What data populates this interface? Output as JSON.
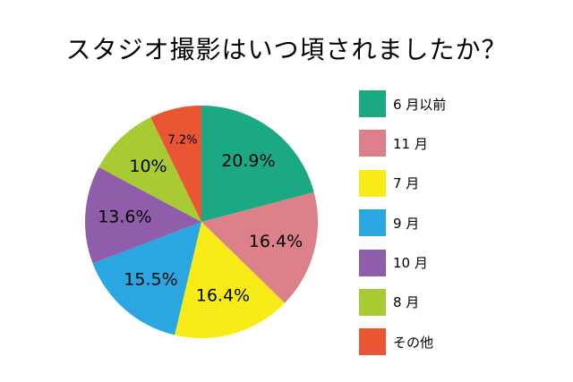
{
  "title": "スタジオ撮影はいつ頃されましたか？",
  "chart_data": {
    "type": "pie",
    "title": "スタジオ撮影はいつ頃されましたか？",
    "start": "12 o'clock, clockwise",
    "legend_position": "right",
    "slices": [
      {
        "label": "6 月以前",
        "value": 20.9,
        "value_label": "20.9%",
        "color": "#1aa982"
      },
      {
        "label": "11 月",
        "value": 16.4,
        "value_label": "16.4%",
        "color": "#dc8089"
      },
      {
        "label": "7 月",
        "value": 16.4,
        "value_label": "16.4%",
        "color": "#f7ec17"
      },
      {
        "label": "9 月",
        "value": 15.5,
        "value_label": "15.5%",
        "color": "#2aa6e0"
      },
      {
        "label": "10 月",
        "value": 13.6,
        "value_label": "13.6%",
        "color": "#8f5da9"
      },
      {
        "label": "8 月",
        "value": 10,
        "value_label": "10%",
        "color": "#a8cb34"
      },
      {
        "label": "その他",
        "value": 7.2,
        "value_label": "7.2%",
        "color": "#ea5633"
      }
    ]
  }
}
